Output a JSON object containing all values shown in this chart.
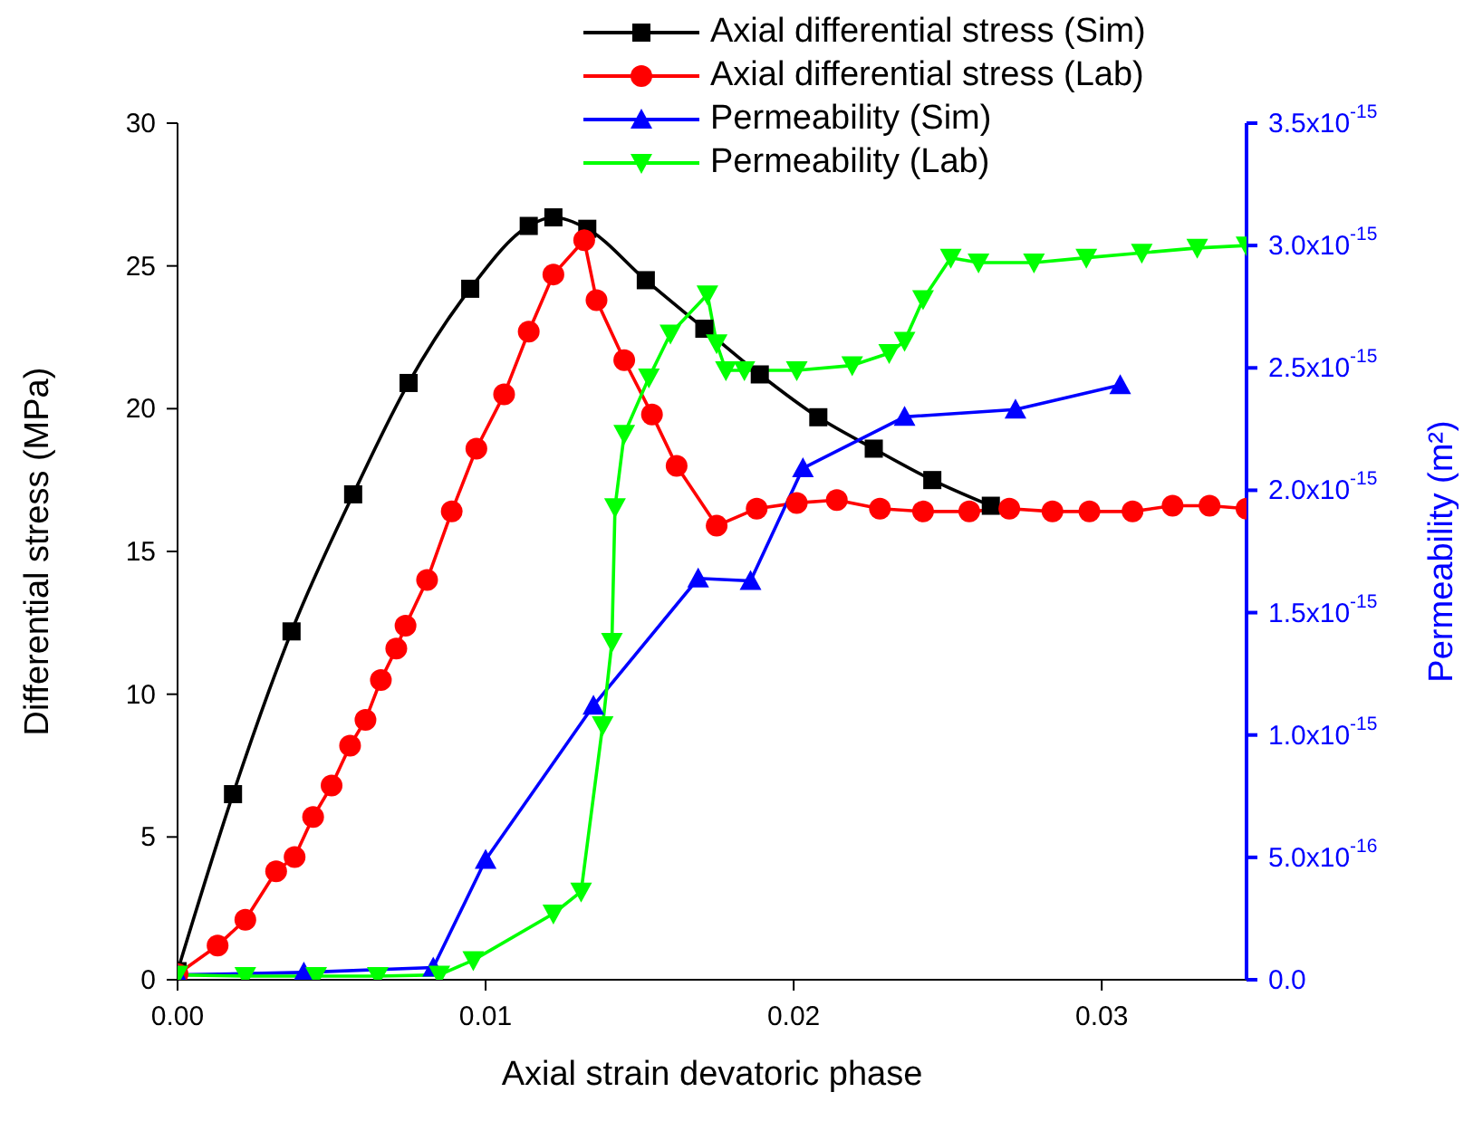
{
  "chart_data": {
    "type": "line",
    "xlabel": "Axial strain devatoric phase",
    "ylabel": "Differential stress (MPa)",
    "y2label": "Permeability (m²)",
    "xlim": [
      0,
      0.0347
    ],
    "xticks": [
      {
        "value": 0,
        "label": "0.00"
      },
      0.01,
      0.02,
      0.03
    ],
    "ylim": [
      0,
      30
    ],
    "yticks": [
      0,
      5,
      10,
      15,
      20,
      25,
      30
    ],
    "y2lim": [
      0,
      3.5e-15
    ],
    "y2ticks": [
      {
        "value": 0,
        "label": "0.0"
      },
      {
        "value": 5e-16,
        "label": "5.0x10$^{-16}$"
      },
      {
        "value": 1e-15,
        "label": "1.0x10$^{-15}$"
      },
      {
        "value": 1.5e-15,
        "label": "1.5x10$^{-15}$"
      },
      {
        "value": 2e-15,
        "label": "2.0x10$^{-15}$"
      },
      {
        "value": 2.5e-15,
        "label": "2.5x10$^{-15}$"
      },
      {
        "value": 3e-15,
        "label": "3.0x10$^{-15}$"
      },
      {
        "value": 3.5e-15,
        "label": "3.5x10$^{-15}$"
      }
    ],
    "legend": "top right",
    "grid": false,
    "line_style": "solid",
    "series": [
      {
        "name": "Axial differential stress (Sim)",
        "color": "#000000",
        "marker": "square",
        "x": [
          0,
          0.0018,
          0.0037,
          0.0057,
          0.0075,
          0.0095,
          0.0114,
          0.0122,
          0.0133,
          0.0152,
          0.0171,
          0.0189,
          0.0208,
          0.0226,
          0.0245,
          0.0264
        ],
        "values": [
          0.3,
          6.5,
          12.2,
          17.0,
          20.9,
          24.2,
          26.4,
          26.7,
          26.3,
          24.5,
          22.8,
          21.2,
          19.7,
          18.6,
          17.5,
          16.6
        ]
      },
      {
        "name": "Axial differential stress (Lab)",
        "color": "#ff0000",
        "marker": "circle",
        "x": [
          0,
          0.0013,
          0.0022,
          0.0032,
          0.0038,
          0.0044,
          0.005,
          0.0056,
          0.0061,
          0.0066,
          0.0071,
          0.0074,
          0.0081,
          0.0089,
          0.0097,
          0.0106,
          0.0114,
          0.0122,
          0.0132,
          0.0136,
          0.0145,
          0.0154,
          0.0162,
          0.0175,
          0.0188,
          0.0201,
          0.0214,
          0.0228,
          0.0242,
          0.0257,
          0.027,
          0.0284,
          0.0296,
          0.031,
          0.0323,
          0.0335,
          0.0347
        ],
        "values": [
          0.2,
          1.2,
          2.1,
          3.8,
          4.3,
          5.7,
          6.8,
          8.2,
          9.1,
          10.5,
          11.6,
          12.4,
          14.0,
          16.4,
          18.6,
          20.5,
          22.7,
          24.7,
          25.9,
          23.8,
          21.7,
          19.8,
          18.0,
          15.9,
          16.5,
          16.7,
          16.8,
          16.5,
          16.4,
          16.4,
          16.5,
          16.4,
          16.4,
          16.4,
          16.6,
          16.6,
          16.5
        ]
      },
      {
        "name": "Permeability (Sim)",
        "color": "#0000ff",
        "marker": "triangle",
        "axis": "y2",
        "x": [
          0,
          0.0041,
          0.0083,
          0.01,
          0.0135,
          0.0169,
          0.0186,
          0.0203,
          0.0236,
          0.0272,
          0.0306
        ],
        "values": [
          2e-17,
          3e-17,
          5e-17,
          4.9e-16,
          1.12e-15,
          1.64e-15,
          1.63e-15,
          2.09e-15,
          2.3e-15,
          2.33e-15,
          2.43e-15
        ]
      },
      {
        "name": "Permeability (Lab)",
        "color": "#00ff00",
        "marker": "triangle-down",
        "axis": "y2",
        "x": [
          0,
          0.0022,
          0.0045,
          0.0065,
          0.0085,
          0.0096,
          0.0122,
          0.0131,
          0.0138,
          0.0141,
          0.0142,
          0.0145,
          0.0153,
          0.016,
          0.0172,
          0.0175,
          0.0178,
          0.0184,
          0.0201,
          0.0219,
          0.0231,
          0.0236,
          0.0242,
          0.0251,
          0.026,
          0.0278,
          0.0295,
          0.0313,
          0.0331,
          0.0347
        ],
        "values": [
          2e-17,
          1.5e-17,
          1.5e-17,
          1.5e-17,
          2e-17,
          8e-17,
          2.7e-16,
          3.6e-16,
          1.04e-15,
          1.38e-15,
          1.93e-15,
          2.23e-15,
          2.46e-15,
          2.64e-15,
          2.8e-15,
          2.6e-15,
          2.49e-15,
          2.49e-15,
          2.49e-15,
          2.51e-15,
          2.56e-15,
          2.61e-15,
          2.78e-15,
          2.95e-15,
          2.93e-15,
          2.93e-15,
          2.95e-15,
          2.97e-15,
          2.99e-15,
          3e-15
        ]
      }
    ]
  }
}
